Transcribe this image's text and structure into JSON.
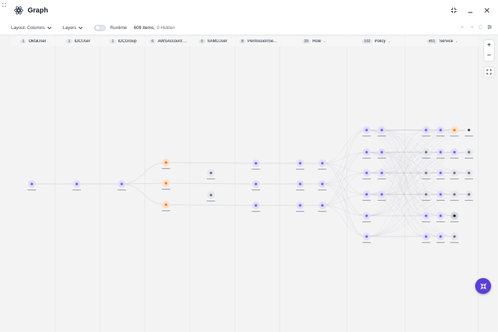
{
  "window": {
    "title": "Graph"
  },
  "toolbar": {
    "layout_label": "Layout: Columns",
    "layers_label": "Layers",
    "runtime_label": "Runtime",
    "items_count": "609 Items,",
    "hidden_count": "0 Hidden"
  },
  "columns": [
    {
      "count": "1",
      "label": "OktaUser",
      "chevron": false
    },
    {
      "count": "1",
      "label": "IDCUser",
      "chevron": false
    },
    {
      "count": "1",
      "label": "IDCGroup",
      "chevron": false
    },
    {
      "count": "6",
      "label": "AWSAccount ...",
      "chevron": false
    },
    {
      "count": "0",
      "label": "SAMLUser",
      "chevron": false
    },
    {
      "count": "8",
      "label": "PermissionSe...",
      "chevron": false
    },
    {
      "count": "39",
      "label": "Role",
      "chevron": true
    },
    {
      "count": "102",
      "label": "Policy",
      "chevron": true
    },
    {
      "count": "451",
      "label": "Service",
      "chevron": true
    }
  ],
  "zoom": {
    "in": "+",
    "out": "−"
  },
  "icons": {
    "logo": "graph-logo-icon",
    "collapse": "collapse-icon",
    "minimize": "minimize-icon",
    "close": "close-icon",
    "fit": "fit-view-icon",
    "fab": "collapse-arrows-icon"
  },
  "colors": {
    "accent": "#5b3fd6",
    "node_purple": "#ddd6fe",
    "node_orange": "#fed7aa"
  }
}
